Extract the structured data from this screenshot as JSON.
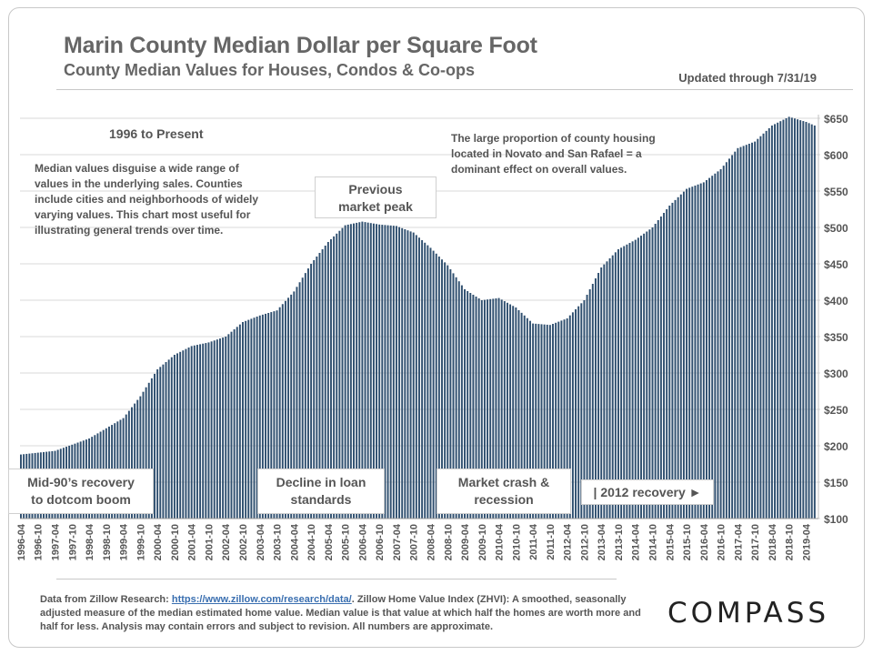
{
  "header": {
    "title": "Marin County Median Dollar per Square Foot",
    "subtitle": "County Median Values for Houses, Condos & Co-ops",
    "updated": "Updated through 7/31/19"
  },
  "notes": {
    "range_heading": "1996 to Present",
    "left_lines": [
      "Median values disguise a wide range of",
      "values in the underlying sales. Counties",
      "include cities and neighborhoods of widely",
      "varying values.  This chart most useful for",
      "illustrating general trends over time."
    ],
    "right_lines": [
      "The large proportion of county housing",
      "located in Novato and San Rafael = a",
      "dominant effect on overall values."
    ]
  },
  "annotations": {
    "peak": [
      "Previous",
      "market peak"
    ],
    "mid90s": [
      "Mid-90’s recovery",
      "to dotcom boom"
    ],
    "loan": [
      "Decline in loan",
      "standards"
    ],
    "crash": [
      "Market crash &",
      "recession"
    ],
    "recovery": "| 2012 recovery ►"
  },
  "footer": {
    "prefix": "Data from Zillow Research: ",
    "link": "https://www.zillow.com/research/data/",
    "suffix": ". Zillow Home Value Index (ZHVI): A smoothed, seasonally adjusted measure of the median estimated home value. Median value is that value at which half the homes are worth more and half for less. Analysis may contain errors and subject to revision. All numbers are approximate."
  },
  "logo": "COMPASS",
  "chart_data": {
    "type": "bar",
    "ylabel": "",
    "xlabel": "",
    "ylim": [
      100,
      650
    ],
    "y_ticks": [
      "$100",
      "$150",
      "$200",
      "$250",
      "$300",
      "$350",
      "$400",
      "$450",
      "$500",
      "$550",
      "$600",
      "$650"
    ],
    "x_tick_labels": [
      "1996-04",
      "1996-10",
      "1997-04",
      "1997-10",
      "1998-04",
      "1998-10",
      "1999-04",
      "1999-10",
      "2000-04",
      "2000-10",
      "2001-04",
      "2001-10",
      "2002-04",
      "2002-10",
      "2003-04",
      "2003-10",
      "2004-04",
      "2004-10",
      "2005-04",
      "2005-10",
      "2006-04",
      "2006-10",
      "2007-04",
      "2007-10",
      "2008-04",
      "2008-10",
      "2009-04",
      "2009-10",
      "2010-04",
      "2010-10",
      "2011-04",
      "2011-10",
      "2012-04",
      "2012-10",
      "2013-04",
      "2013-10",
      "2014-04",
      "2014-10",
      "2015-04",
      "2015-10",
      "2016-04",
      "2016-10",
      "2017-04",
      "2017-10",
      "2018-04",
      "2018-10",
      "2019-04"
    ],
    "start_month": "1996-04",
    "end_month": "2019-07",
    "anchors": [
      [
        "1996-04",
        188
      ],
      [
        "1997-04",
        193
      ],
      [
        "1998-04",
        210
      ],
      [
        "1999-04",
        238
      ],
      [
        "1999-10",
        268
      ],
      [
        "2000-04",
        305
      ],
      [
        "2000-10",
        325
      ],
      [
        "2001-04",
        337
      ],
      [
        "2001-10",
        342
      ],
      [
        "2002-04",
        350
      ],
      [
        "2002-10",
        370
      ],
      [
        "2003-04",
        379
      ],
      [
        "2003-10",
        386
      ],
      [
        "2004-04",
        412
      ],
      [
        "2004-10",
        450
      ],
      [
        "2005-04",
        480
      ],
      [
        "2005-10",
        503
      ],
      [
        "2006-04",
        508
      ],
      [
        "2006-10",
        504
      ],
      [
        "2007-04",
        502
      ],
      [
        "2007-10",
        493
      ],
      [
        "2008-04",
        472
      ],
      [
        "2008-10",
        448
      ],
      [
        "2009-04",
        415
      ],
      [
        "2009-10",
        400
      ],
      [
        "2010-04",
        403
      ],
      [
        "2010-10",
        390
      ],
      [
        "2011-04",
        368
      ],
      [
        "2011-10",
        366
      ],
      [
        "2012-04",
        375
      ],
      [
        "2012-10",
        400
      ],
      [
        "2013-04",
        445
      ],
      [
        "2013-10",
        470
      ],
      [
        "2014-04",
        483
      ],
      [
        "2014-10",
        500
      ],
      [
        "2015-04",
        530
      ],
      [
        "2015-10",
        553
      ],
      [
        "2016-04",
        562
      ],
      [
        "2016-10",
        580
      ],
      [
        "2017-04",
        609
      ],
      [
        "2017-10",
        618
      ],
      [
        "2018-04",
        640
      ],
      [
        "2018-10",
        652
      ],
      [
        "2019-04",
        645
      ],
      [
        "2019-07",
        640
      ]
    ],
    "bar_color": "#2f4f6f",
    "grid": true
  }
}
